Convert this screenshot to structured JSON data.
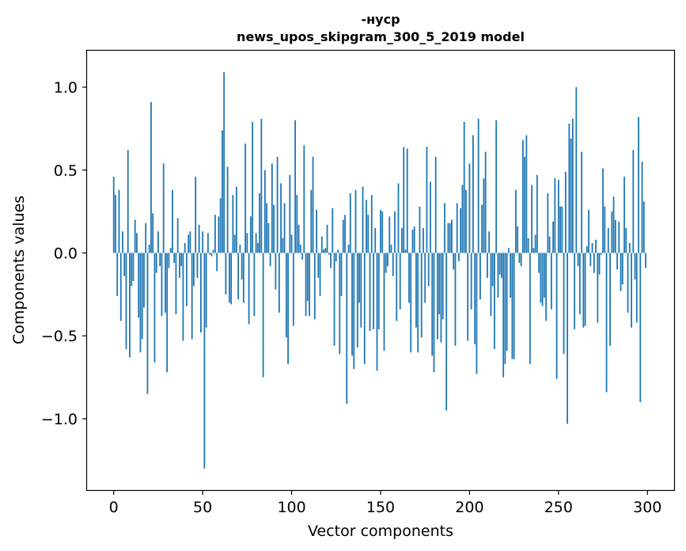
{
  "chart_data": {
    "type": "bar",
    "title": "-нуср",
    "subtitle": "news_upos_skipgram_300_5_2019 model",
    "xlabel": "Vector components",
    "ylabel": "Components values",
    "xlim": [
      -15,
      315
    ],
    "ylim": [
      -1.43,
      1.22
    ],
    "x_ticks": [
      0,
      50,
      100,
      150,
      200,
      250,
      300
    ],
    "x_tick_labels": [
      "0",
      "50",
      "100",
      "150",
      "200",
      "250",
      "300"
    ],
    "y_ticks": [
      -1.0,
      -0.5,
      0.0,
      0.5,
      1.0
    ],
    "y_tick_labels": [
      "−1.0",
      "−0.5",
      "0.0",
      "0.5",
      "1.0"
    ],
    "grid": false,
    "bar_color": "#1f77b4",
    "values": [
      0.46,
      0.35,
      -0.26,
      0.38,
      -0.41,
      0.13,
      -0.14,
      -0.58,
      0.62,
      -0.63,
      -0.2,
      -0.17,
      0.2,
      0.12,
      -0.39,
      -0.6,
      -0.52,
      -0.33,
      0.18,
      -0.85,
      0.05,
      0.91,
      0.24,
      -0.66,
      -0.12,
      0.13,
      -0.08,
      -0.38,
      0.54,
      -0.36,
      -0.72,
      -0.09,
      0.03,
      0.38,
      -0.06,
      -0.37,
      0.21,
      -0.15,
      -0.08,
      -0.53,
      0.06,
      -0.32,
      0.11,
      0.13,
      -0.52,
      -0.2,
      0.46,
      -0.15,
      0.17,
      -0.48,
      0.13,
      -1.3,
      -0.45,
      0.12,
      -0.01,
      -0.02,
      0.02,
      0.23,
      -0.11,
      0.22,
      0.33,
      0.74,
      1.09,
      -0.25,
      0.52,
      -0.3,
      -0.31,
      0.35,
      0.11,
      0.4,
      -0.28,
      0.05,
      -0.16,
      -0.3,
      0.66,
      0.12,
      -0.43,
      0.22,
      0.79,
      -0.38,
      0.12,
      0.06,
      0.36,
      0.81,
      -0.75,
      0.5,
      0.3,
      0.18,
      -0.08,
      0.54,
      0.29,
      -0.22,
      0.58,
      -0.36,
      0.42,
      0.09,
      0.3,
      -0.51,
      -0.67,
      0.47,
      0.11,
      -0.44,
      0.8,
      0.35,
      0.17,
      0.05,
      -0.04,
      0.65,
      -0.38,
      -0.29,
      -0.38,
      0.38,
      0.58,
      -0.4,
      0.26,
      -0.15,
      -0.26,
      0.1,
      0.02,
      0.03,
      0.17,
      -0.01,
      -0.09,
      0.27,
      -0.56,
      -0.05,
      0.02,
      -0.61,
      -0.26,
      0.2,
      0.23,
      -0.91,
      0.05,
      0.36,
      -0.62,
      -0.7,
      0.38,
      -0.57,
      -0.3,
      -0.45,
      0.4,
      -0.67,
      0.32,
      0.23,
      -0.47,
      0.35,
      -0.46,
      0.15,
      -0.71,
      -0.46,
      0.26,
      0.25,
      -0.59,
      -0.12,
      -0.08,
      0.22,
      0.05,
      -0.14,
      0.25,
      -0.41,
      0.42,
      -0.34,
      0.15,
      0.64,
      0.02,
      0.63,
      -0.3,
      -0.6,
      0.14,
      0.16,
      -0.45,
      -0.6,
      0.28,
      -0.51,
      0.15,
      -0.3,
      0.64,
      -0.2,
      0.43,
      -0.62,
      -0.72,
      0.58,
      -0.52,
      -0.37,
      -0.54,
      -0.4,
      0.3,
      -0.95,
      0.18,
      0.18,
      0.2,
      -0.1,
      -0.56,
      0.3,
      -0.05,
      0.27,
      0.41,
      0.79,
      0.38,
      -0.53,
      0.54,
      -0.34,
      0.71,
      -0.55,
      -0.73,
      0.81,
      -0.28,
      0.29,
      0.45,
      0.61,
      -0.15,
      0.13,
      -0.38,
      -0.2,
      -0.58,
      0.8,
      -0.27,
      -0.13,
      -0.15,
      -0.75,
      -0.67,
      -0.59,
      0.03,
      -0.27,
      -0.64,
      -0.64,
      0.38,
      0.16,
      -0.06,
      -0.08,
      0.68,
      0.58,
      0.71,
      0.09,
      -0.67,
      0.41,
      0.03,
      0.11,
      0.47,
      -0.12,
      -0.3,
      -0.32,
      -0.27,
      -0.41,
      0.36,
      0.1,
      -0.34,
      0.19,
      0.45,
      -0.76,
      0.44,
      0.28,
      0.28,
      -0.61,
      0.49,
      -1.03,
      0.78,
      0.69,
      0.81,
      -0.46,
      1.0,
      -0.08,
      -0.37,
      0.61,
      -0.45,
      -0.44,
      0.04,
      0.26,
      -0.08,
      0.06,
      -0.12,
      0.08,
      -0.42,
      -0.13,
      -0.01,
      0.51,
      0.28,
      -0.84,
      0.15,
      -0.56,
      0.25,
      0.34,
      0.2,
      -0.1,
      0.19,
      -0.23,
      -0.19,
      0.46,
      0.15,
      -0.36,
      0.06,
      -0.45,
      0.62,
      -0.16,
      -0.42,
      0.82,
      -0.9,
      0.55,
      0.31,
      -0.09
    ]
  }
}
